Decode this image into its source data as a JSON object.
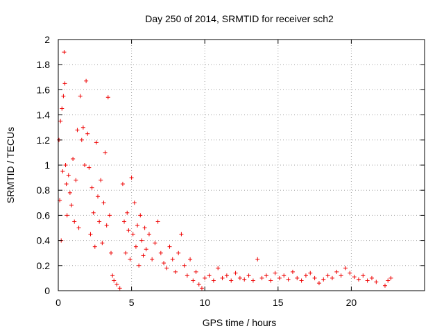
{
  "chart_data": {
    "type": "scatter",
    "title": "Day 250 of 2014, SRMTID for receiver sch2",
    "xlabel": "GPS time / hours",
    "ylabel": "SRMTID / TECUs",
    "xlim": [
      0,
      25
    ],
    "ylim": [
      0,
      2
    ],
    "xticks": [
      0,
      5,
      10,
      15,
      20
    ],
    "yticks": [
      0,
      0.2,
      0.4,
      0.6,
      0.8,
      1,
      1.2,
      1.4,
      1.6,
      1.8,
      2
    ],
    "grid": true,
    "marker": "+",
    "color": "#ee0000",
    "series": [
      {
        "name": "sch2",
        "x": [
          0.05,
          0.1,
          0.15,
          0.2,
          0.25,
          0.3,
          0.35,
          0.4,
          0.45,
          0.5,
          0.55,
          0.6,
          0.7,
          0.8,
          0.9,
          1.0,
          1.1,
          1.2,
          1.3,
          1.4,
          1.5,
          1.6,
          1.7,
          1.8,
          1.9,
          2.0,
          2.1,
          2.2,
          2.3,
          2.4,
          2.5,
          2.6,
          2.7,
          2.8,
          2.9,
          3.0,
          3.1,
          3.2,
          3.3,
          3.4,
          3.5,
          3.6,
          3.7,
          3.8,
          4.0,
          4.2,
          4.4,
          4.5,
          4.6,
          4.7,
          4.8,
          4.9,
          5.0,
          5.1,
          5.2,
          5.3,
          5.4,
          5.5,
          5.6,
          5.7,
          5.8,
          5.9,
          6.0,
          6.2,
          6.4,
          6.6,
          6.8,
          7.0,
          7.2,
          7.4,
          7.6,
          7.8,
          8.0,
          8.2,
          8.4,
          8.6,
          8.8,
          9.0,
          9.2,
          9.4,
          9.6,
          9.8,
          10.0,
          10.3,
          10.6,
          10.9,
          11.2,
          11.5,
          11.8,
          12.1,
          12.4,
          12.7,
          13.0,
          13.3,
          13.6,
          13.9,
          14.2,
          14.5,
          14.8,
          15.1,
          15.4,
          15.7,
          16.0,
          16.3,
          16.6,
          16.9,
          17.2,
          17.5,
          17.8,
          18.1,
          18.4,
          18.7,
          19.0,
          19.3,
          19.6,
          19.9,
          20.2,
          20.5,
          20.8,
          21.1,
          21.4,
          21.7,
          22.3,
          22.5,
          22.7
        ],
        "y": [
          1.2,
          0.72,
          1.35,
          0.4,
          1.45,
          0.95,
          1.55,
          1.9,
          1.65,
          1.0,
          0.85,
          0.6,
          0.92,
          0.78,
          0.68,
          1.05,
          0.55,
          0.88,
          1.28,
          0.5,
          1.55,
          1.2,
          1.3,
          1.0,
          1.67,
          1.25,
          0.98,
          0.45,
          0.82,
          0.62,
          0.35,
          1.18,
          0.75,
          0.55,
          0.88,
          0.38,
          0.7,
          1.1,
          0.52,
          1.54,
          0.6,
          0.3,
          0.12,
          0.08,
          0.05,
          0.02,
          0.85,
          0.55,
          0.3,
          0.62,
          0.48,
          0.25,
          0.9,
          0.45,
          0.7,
          0.35,
          0.52,
          0.2,
          0.6,
          0.4,
          0.28,
          0.5,
          0.33,
          0.45,
          0.25,
          0.38,
          0.55,
          0.3,
          0.22,
          0.18,
          0.35,
          0.25,
          0.15,
          0.3,
          0.45,
          0.2,
          0.12,
          0.25,
          0.08,
          0.15,
          0.05,
          0.02,
          0.1,
          0.12,
          0.08,
          0.18,
          0.1,
          0.12,
          0.08,
          0.14,
          0.1,
          0.09,
          0.12,
          0.08,
          0.25,
          0.1,
          0.12,
          0.08,
          0.14,
          0.1,
          0.12,
          0.09,
          0.15,
          0.1,
          0.08,
          0.12,
          0.14,
          0.1,
          0.06,
          0.09,
          0.12,
          0.1,
          0.15,
          0.12,
          0.18,
          0.14,
          0.11,
          0.09,
          0.12,
          0.08,
          0.1,
          0.07,
          0.04,
          0.08,
          0.1
        ]
      }
    ]
  }
}
